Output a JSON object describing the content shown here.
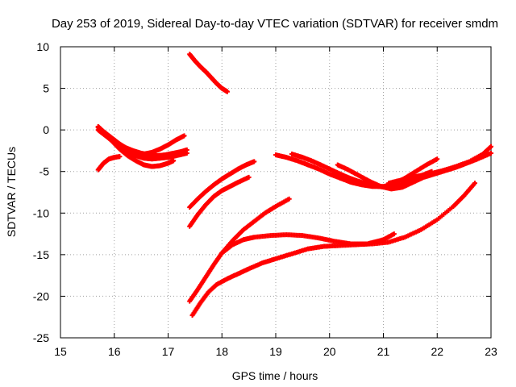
{
  "chart_data": {
    "type": "scatter",
    "title": "Day 253 of 2019, Sidereal Day-to-day VTEC variation (SDTVAR) for receiver smdm",
    "xlabel": "GPS time / hours",
    "ylabel": "SDTVAR / TECUs",
    "xlim": [
      15,
      23
    ],
    "ylim": [
      -25,
      10
    ],
    "x_ticks": [
      "15",
      "16",
      "17",
      "18",
      "19",
      "20",
      "21",
      "22",
      "23"
    ],
    "y_ticks": [
      "10",
      "5",
      "0",
      "-5",
      "-10",
      "-15",
      "-20",
      "-25"
    ],
    "grid": true,
    "marker": "plus",
    "color": "#ff0000",
    "series": [
      {
        "x": [
          15.7,
          15.8,
          15.9,
          16.0,
          16.1,
          16.2,
          16.35,
          16.5,
          16.65,
          16.8,
          16.95,
          17.1,
          17.25,
          17.35
        ],
        "y": [
          0.4,
          -0.2,
          -0.7,
          -1.2,
          -1.7,
          -2.1,
          -2.5,
          -2.8,
          -3.0,
          -3.1,
          -3.0,
          -2.8,
          -2.6,
          -2.4
        ]
      },
      {
        "x": [
          15.7,
          15.8,
          15.9,
          16.0,
          16.1,
          16.25,
          16.4,
          16.55,
          16.7,
          16.85,
          17.0,
          17.15,
          17.35
        ],
        "y": [
          0.0,
          -0.5,
          -1.0,
          -1.5,
          -2.0,
          -2.6,
          -3.1,
          -3.4,
          -3.5,
          -3.4,
          -3.3,
          -3.1,
          -2.8
        ]
      },
      {
        "x": [
          15.7,
          15.8,
          15.95,
          16.1,
          16.25,
          16.4,
          16.55,
          16.7,
          16.85,
          17.0,
          17.1
        ],
        "y": [
          0.3,
          -0.4,
          -1.3,
          -2.3,
          -3.1,
          -3.7,
          -4.2,
          -4.4,
          -4.3,
          -4.0,
          -3.7
        ]
      },
      {
        "x": [
          16.4,
          16.55,
          16.7,
          16.85,
          17.0,
          17.15,
          17.3
        ],
        "y": [
          -2.8,
          -2.9,
          -2.7,
          -2.3,
          -1.8,
          -1.2,
          -0.7
        ]
      },
      {
        "x": [
          15.7,
          15.8,
          15.9,
          16.0,
          16.1
        ],
        "y": [
          -4.8,
          -4.0,
          -3.5,
          -3.3,
          -3.2
        ]
      },
      {
        "x": [
          17.4,
          17.5,
          17.6,
          17.7,
          17.8,
          17.9,
          18.0,
          18.1
        ],
        "y": [
          9.1,
          8.3,
          7.6,
          7.0,
          6.3,
          5.6,
          5.0,
          4.6
        ]
      },
      {
        "x": [
          17.4,
          17.55,
          17.7,
          17.85,
          18.0,
          18.15,
          18.3,
          18.45,
          18.6
        ],
        "y": [
          -9.3,
          -8.3,
          -7.4,
          -6.6,
          -5.9,
          -5.3,
          -4.7,
          -4.2,
          -3.8
        ]
      },
      {
        "x": [
          17.4,
          17.55,
          17.7,
          17.85,
          18.0,
          18.15,
          18.3,
          18.5
        ],
        "y": [
          -11.6,
          -10.2,
          -9.0,
          -8.0,
          -7.3,
          -6.8,
          -6.3,
          -5.7
        ]
      },
      {
        "x": [
          17.4,
          17.55,
          17.7,
          17.85,
          18.0,
          18.2,
          18.4,
          18.6,
          18.8,
          19.0,
          19.25
        ],
        "y": [
          -20.6,
          -19.2,
          -17.7,
          -16.2,
          -14.8,
          -13.3,
          -12.0,
          -11.0,
          -10.0,
          -9.2,
          -8.3
        ]
      },
      {
        "x": [
          17.45,
          17.6,
          17.75,
          17.9,
          18.1,
          18.3,
          18.5,
          18.75,
          19.0,
          19.3,
          19.6,
          19.9,
          20.2,
          20.5,
          20.8,
          21.1,
          21.4,
          21.7,
          22.0,
          22.3,
          22.5,
          22.7
        ],
        "y": [
          -22.3,
          -20.8,
          -19.5,
          -18.6,
          -17.9,
          -17.3,
          -16.7,
          -16.0,
          -15.5,
          -14.9,
          -14.3,
          -14.0,
          -13.9,
          -13.8,
          -13.7,
          -13.5,
          -12.9,
          -12.0,
          -10.8,
          -9.2,
          -7.9,
          -6.4
        ]
      },
      {
        "x": [
          18.0,
          18.2,
          18.4,
          18.6,
          18.9,
          19.2,
          19.5,
          19.8,
          20.1,
          20.4,
          20.7,
          21.0,
          21.2
        ],
        "y": [
          -14.8,
          -13.8,
          -13.2,
          -12.9,
          -12.7,
          -12.6,
          -12.7,
          -13.0,
          -13.4,
          -13.7,
          -13.7,
          -13.2,
          -12.5
        ]
      },
      {
        "x": [
          19.0,
          19.2,
          19.4,
          19.6,
          19.8,
          20.0,
          20.2,
          20.4,
          20.6,
          20.8,
          21.0,
          21.2,
          21.4,
          21.6,
          21.8,
          22.0
        ],
        "y": [
          -3.0,
          -3.3,
          -3.7,
          -4.2,
          -4.7,
          -5.3,
          -5.8,
          -6.3,
          -6.6,
          -6.8,
          -6.8,
          -6.5,
          -5.8,
          -5.0,
          -4.2,
          -3.5
        ]
      },
      {
        "x": [
          19.3,
          19.5,
          19.7,
          19.9,
          20.1,
          20.3,
          20.5,
          20.7,
          20.9,
          21.1,
          21.3,
          21.5,
          21.7,
          21.9
        ],
        "y": [
          -2.9,
          -3.3,
          -3.8,
          -4.4,
          -5.0,
          -5.6,
          -6.1,
          -6.5,
          -6.8,
          -6.9,
          -6.7,
          -6.1,
          -5.5,
          -5.0
        ]
      },
      {
        "x": [
          20.15,
          20.35,
          20.55,
          20.75,
          20.95,
          21.15,
          21.35,
          21.55,
          21.75,
          21.95,
          22.15,
          22.35,
          22.55,
          22.75,
          23.0
        ],
        "y": [
          -4.2,
          -4.8,
          -5.5,
          -6.2,
          -6.8,
          -7.1,
          -6.9,
          -6.3,
          -5.7,
          -5.3,
          -4.9,
          -4.5,
          -4.0,
          -3.5,
          -2.8
        ]
      },
      {
        "x": [
          21.1,
          21.35,
          21.6,
          21.85,
          22.1,
          22.35,
          22.6,
          22.85,
          23.0
        ],
        "y": [
          -6.4,
          -6.0,
          -5.6,
          -5.3,
          -4.9,
          -4.4,
          -3.8,
          -2.9,
          -2.0
        ]
      }
    ]
  }
}
